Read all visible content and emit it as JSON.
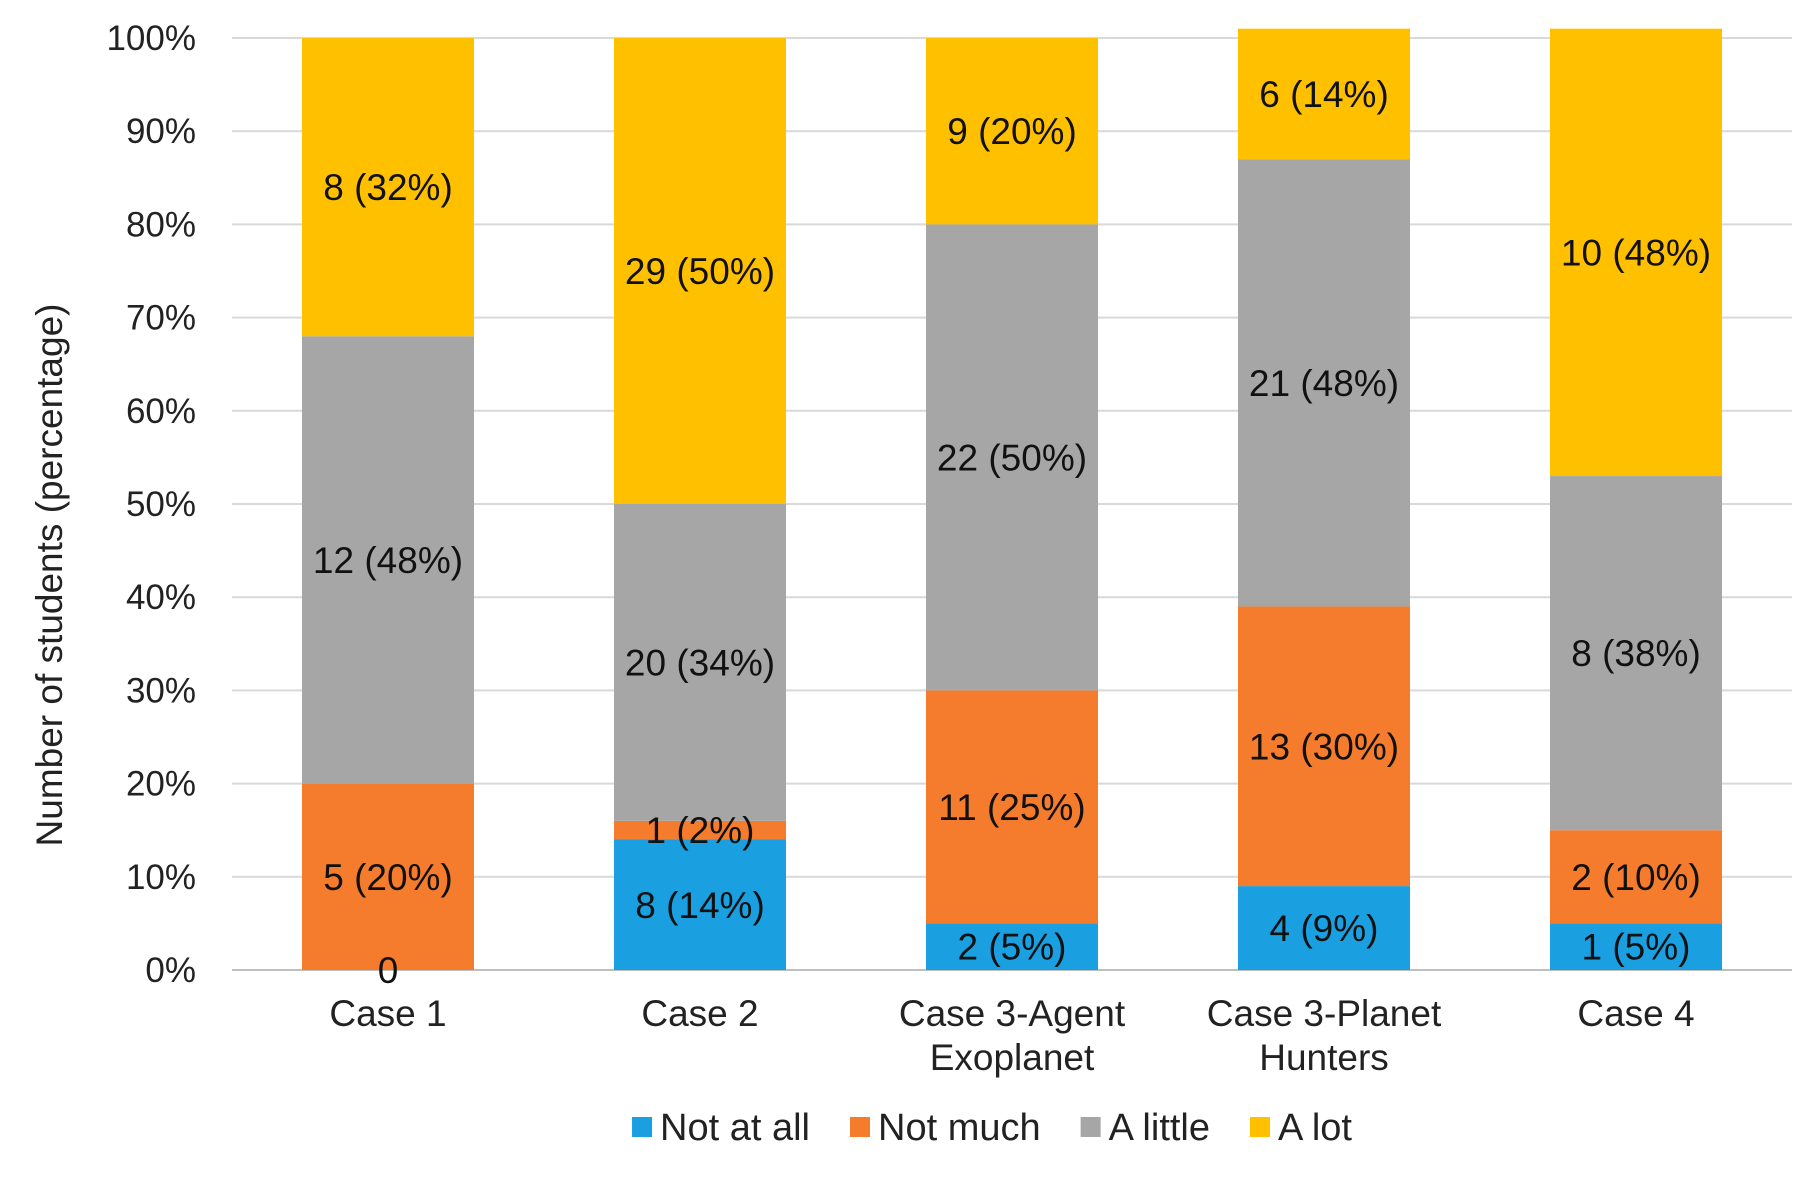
{
  "chart_data": {
    "type": "bar",
    "stacked": true,
    "percent_stacked": true,
    "title": "",
    "xlabel": "",
    "ylabel": "Number of students (percentage)",
    "ylim": [
      0,
      100
    ],
    "yticks": [
      "0%",
      "10%",
      "20%",
      "30%",
      "40%",
      "50%",
      "60%",
      "70%",
      "80%",
      "90%",
      "100%"
    ],
    "grid": "horizontal",
    "legend_position": "bottom",
    "categories": [
      [
        "Case 1"
      ],
      [
        "Case 2"
      ],
      [
        "Case 3-Agent",
        "Exoplanet"
      ],
      [
        "Case 3-Planet",
        "Hunters"
      ],
      [
        "Case 4"
      ]
    ],
    "series": [
      {
        "name": "Not at all",
        "color": "#1a9fe0",
        "values": [
          0,
          14,
          5,
          9,
          5
        ],
        "labels": [
          "0",
          "8 (14%)",
          "2 (5%)",
          "4 (9%)",
          "1 (5%)"
        ]
      },
      {
        "name": "Not much",
        "color": "#f47c2c",
        "values": [
          20,
          2,
          25,
          30,
          10
        ],
        "labels": [
          "5 (20%)",
          "1 (2%)",
          "11 (25%)",
          "13 (30%)",
          "2 (10%)"
        ]
      },
      {
        "name": "A little",
        "color": "#a6a6a6",
        "values": [
          48,
          34,
          50,
          48,
          38
        ],
        "labels": [
          "12 (48%)",
          "20 (34%)",
          "22 (50%)",
          "21 (48%)",
          "8 (38%)"
        ]
      },
      {
        "name": "A lot",
        "color": "#ffc000",
        "values": [
          32,
          50,
          20,
          14,
          48
        ],
        "labels": [
          "8 (32%)",
          "29 (50%)",
          "9 (20%)",
          "6 (14%)",
          "10 (48%)"
        ]
      }
    ]
  }
}
